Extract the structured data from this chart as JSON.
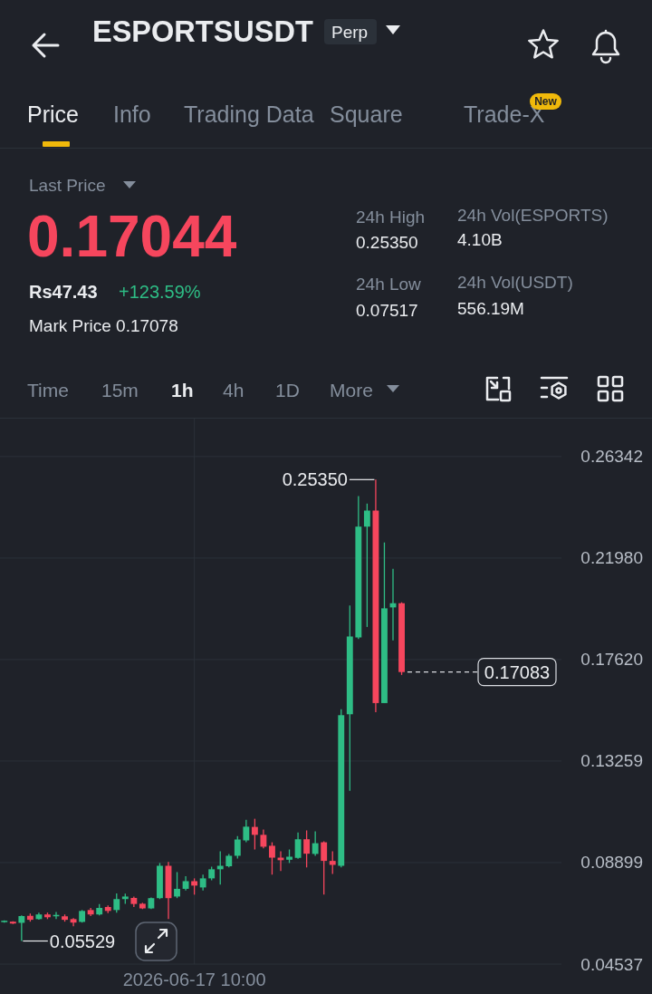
{
  "chart_data": [
    {
      "type": "other",
      "title": "ESPORTSUSDT",
      "annotations": [
        "Perp",
        "Price",
        "Info",
        "Trading Data",
        "Square",
        "Trade-X",
        "New",
        "Last Price",
        "0.17044",
        "Rs47.43",
        "+123.59%",
        "Mark Price 0.17078",
        "24h High",
        "0.25350",
        "24h Low",
        "0.07517",
        "24h Vol(ESPORTS)",
        "4.10B",
        "24h Vol(USDT)",
        "556.19M",
        "Time",
        "15m",
        "1h",
        "4h",
        "1D",
        "More"
      ]
    },
    {
      "type": "candlestick",
      "categories": [
        null,
        null,
        null,
        null,
        null,
        null,
        null,
        null,
        null,
        null,
        null,
        null,
        null,
        null,
        null,
        null,
        null,
        null,
        null,
        null,
        null,
        null,
        "2026-06-17 10:00",
        null,
        null,
        null,
        null,
        null,
        null,
        null,
        null,
        null,
        null,
        null,
        null,
        null,
        null,
        null,
        null,
        null,
        null,
        null,
        null,
        null,
        null,
        null,
        null,
        null,
        null,
        null,
        null,
        null,
        null,
        null,
        null,
        null,
        null,
        null,
        null,
        null,
        null,
        null,
        null,
        null,
        null
      ],
      "ohlc": [
        [
          0.0634,
          0.0642,
          0.0632,
          0.064
        ],
        [
          0.0636,
          0.0638,
          0.0626,
          0.0628
        ],
        [
          0.0631,
          0.0663,
          0.05529,
          0.066
        ],
        [
          0.0661,
          0.0671,
          0.0636,
          0.0644
        ],
        [
          0.0647,
          0.0675,
          0.0644,
          0.0667
        ],
        [
          0.0667,
          0.0675,
          0.0647,
          0.0655
        ],
        [
          0.0659,
          0.0678,
          0.0647,
          0.0665
        ],
        [
          0.0659,
          0.0667,
          0.0636,
          0.0644
        ],
        [
          0.0647,
          0.0651,
          0.0616,
          0.0632
        ],
        [
          0.0635,
          0.0686,
          0.0632,
          0.0682
        ],
        [
          0.0686,
          0.0695,
          0.066,
          0.0667
        ],
        [
          0.0667,
          0.0712,
          0.0663,
          0.0695
        ],
        [
          0.0699,
          0.0706,
          0.0673,
          0.0682
        ],
        [
          0.0686,
          0.0757,
          0.0675,
          0.0733
        ],
        [
          0.0733,
          0.0756,
          0.0713,
          0.0744
        ],
        [
          0.0738,
          0.0744,
          0.0699,
          0.0712
        ],
        [
          0.0713,
          0.0717,
          0.069,
          0.0693
        ],
        [
          0.0693,
          0.074,
          0.069,
          0.0737
        ],
        [
          0.0737,
          0.0888,
          0.0733,
          0.0876
        ],
        [
          0.0876,
          0.0893,
          0.0647,
          0.0737
        ],
        [
          0.0744,
          0.0849,
          0.0737,
          0.0777
        ],
        [
          0.0777,
          0.0831,
          0.077,
          0.081
        ],
        [
          0.081,
          0.0822,
          0.0752,
          0.0791
        ],
        [
          0.0783,
          0.0838,
          0.077,
          0.0822
        ],
        [
          0.0822,
          0.0872,
          0.0814,
          0.0861
        ],
        [
          0.0861,
          0.0938,
          0.0795,
          0.0876
        ],
        [
          0.0874,
          0.0927,
          0.0869,
          0.0919
        ],
        [
          0.0919,
          0.1004,
          0.0907,
          0.0989
        ],
        [
          0.0985,
          0.1074,
          0.0977,
          0.1044
        ],
        [
          0.1043,
          0.1078,
          0.0946,
          0.1009
        ],
        [
          0.1009,
          0.1032,
          0.0951,
          0.0958
        ],
        [
          0.0962,
          0.0977,
          0.0838,
          0.0911
        ],
        [
          0.0911,
          0.0938,
          0.0854,
          0.09
        ],
        [
          0.0902,
          0.0946,
          0.0888,
          0.0915
        ],
        [
          0.091,
          0.1019,
          0.0906,
          0.099
        ],
        [
          0.099,
          0.1028,
          0.0869,
          0.0928
        ],
        [
          0.0927,
          0.1024,
          0.0919,
          0.0973
        ],
        [
          0.0977,
          0.0981,
          0.0752,
          0.0897
        ],
        [
          0.0897,
          0.0938,
          0.0841,
          0.088
        ],
        [
          0.0876,
          0.1548,
          0.0869,
          0.1523
        ],
        [
          0.1527,
          0.1994,
          0.1198,
          0.1861
        ],
        [
          0.1857,
          0.2464,
          0.185,
          0.2333
        ],
        [
          0.2333,
          0.2432,
          0.1902,
          0.2402
        ],
        [
          0.2402,
          0.2535,
          0.1536,
          0.1575
        ],
        [
          0.1575,
          0.2265,
          0.1575,
          0.1982
        ],
        [
          0.1986,
          0.2152,
          0.1844,
          0.2004
        ],
        [
          0.2004,
          0.2008,
          0.1696,
          0.17083
        ],
        null,
        null,
        null,
        null,
        null,
        null,
        null,
        null,
        null,
        null,
        null,
        null,
        null,
        null,
        null,
        null,
        null,
        null
      ],
      "colors": [
        "#2ebd85",
        "#f6465d",
        "#2ebd85",
        "#f6465d",
        "#2ebd85",
        "#f6465d",
        "#2ebd85",
        "#f6465d",
        "#f6465d",
        "#2ebd85",
        "#f6465d",
        "#2ebd85",
        "#f6465d",
        "#2ebd85",
        "#2ebd85",
        "#f6465d",
        "#f6465d",
        "#2ebd85",
        "#2ebd85",
        "#f6465d",
        "#2ebd85",
        "#2ebd85",
        "#f6465d",
        "#2ebd85",
        "#2ebd85",
        "#2ebd85",
        "#2ebd85",
        "#2ebd85",
        "#2ebd85",
        "#f6465d",
        "#f6465d",
        "#f6465d",
        "#f6465d",
        "#2ebd85",
        "#2ebd85",
        "#f6465d",
        "#2ebd85",
        "#f6465d",
        "#f6465d",
        "#2ebd85",
        "#2ebd85",
        "#2ebd85",
        "#2ebd85",
        "#f6465d",
        "#2ebd85",
        "#2ebd85",
        "#f6465d",
        null,
        null,
        null,
        null,
        null,
        null,
        null,
        null,
        null,
        null,
        null,
        null,
        null,
        null,
        null,
        null,
        null,
        null
      ],
      "ylim": [
        0.04537,
        0.2797
      ],
      "yticks": [
        0.26342,
        {
          "value": 0.2198,
          "label": "0.21980"
        },
        {
          "value": 0.1762,
          "label": "0.17620"
        },
        0.13259,
        0.08899,
        0.04537
      ],
      "grid": true,
      "annotations": [
        "0.25350",
        "0.05529"
      ],
      "ref_lines": [
        {
          "axis": "y",
          "value": 0.17083,
          "label": "0.17083",
          "color": "#d9dce1",
          "line_style": "dashed"
        }
      ]
    }
  ]
}
